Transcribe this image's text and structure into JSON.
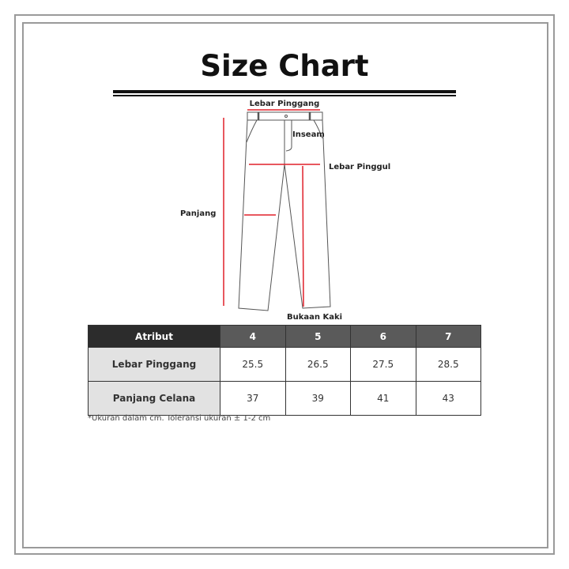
{
  "title": "Size Chart",
  "diagram": {
    "labels": {
      "waist": "Lebar Pinggang",
      "inseam": "Inseam",
      "hip": "Lebar Pinggul",
      "length": "Panjang",
      "leg_opening": "Bukaan Kaki"
    },
    "measure_color": "#e0202a"
  },
  "table": {
    "headers": [
      "Atribut",
      "4",
      "5",
      "6",
      "7"
    ],
    "rows": [
      {
        "label": "Lebar Pinggang",
        "values": [
          "25.5",
          "26.5",
          "27.5",
          "28.5"
        ]
      },
      {
        "label": "Panjang Celana",
        "values": [
          "37",
          "39",
          "41",
          "43"
        ]
      }
    ]
  },
  "note": "*Ukuran dalam cm. Toleransi ukuran ± 1-2 cm"
}
